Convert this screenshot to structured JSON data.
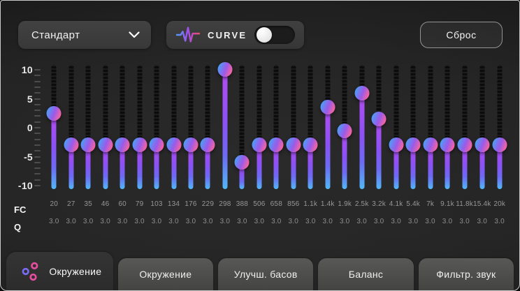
{
  "header": {
    "preset": {
      "value": "Стандарт"
    },
    "curve": {
      "label": "CURVE",
      "enabled": false
    },
    "reset_label": "Сброс"
  },
  "equalizer": {
    "db_scale": [
      10,
      5,
      0,
      -5,
      -10
    ],
    "db_min": -10,
    "db_max": 10,
    "fc_row_label": "FC",
    "q_row_label": "Q",
    "bands": [
      {
        "freq": "20",
        "gain": 2.5,
        "q": "3.0"
      },
      {
        "freq": "27",
        "gain": -3,
        "q": "3.0"
      },
      {
        "freq": "35",
        "gain": -3,
        "q": "3.0"
      },
      {
        "freq": "46",
        "gain": -3,
        "q": "3.0"
      },
      {
        "freq": "60",
        "gain": -3,
        "q": "3.0"
      },
      {
        "freq": "79",
        "gain": -3,
        "q": "3.0"
      },
      {
        "freq": "103",
        "gain": -3,
        "q": "3.0"
      },
      {
        "freq": "134",
        "gain": -3,
        "q": "3.0"
      },
      {
        "freq": "176",
        "gain": -3,
        "q": "3.0"
      },
      {
        "freq": "229",
        "gain": -3,
        "q": "3.0"
      },
      {
        "freq": "298",
        "gain": 10.5,
        "q": "3.0"
      },
      {
        "freq": "388",
        "gain": -6,
        "q": "3.0"
      },
      {
        "freq": "506",
        "gain": -3,
        "q": "3.0"
      },
      {
        "freq": "658",
        "gain": -3,
        "q": "3.0"
      },
      {
        "freq": "856",
        "gain": -3,
        "q": "3.0"
      },
      {
        "freq": "1.1k",
        "gain": -3,
        "q": "3.0"
      },
      {
        "freq": "1.4k",
        "gain": 3.5,
        "q": "3.0"
      },
      {
        "freq": "1.9k",
        "gain": -0.5,
        "q": "3.0"
      },
      {
        "freq": "2.5k",
        "gain": 6,
        "q": "3.0"
      },
      {
        "freq": "3.2k",
        "gain": 1.5,
        "q": "3.0"
      },
      {
        "freq": "4.1k",
        "gain": -3,
        "q": "3.0"
      },
      {
        "freq": "5.4k",
        "gain": -3,
        "q": "3.0"
      },
      {
        "freq": "7k",
        "gain": -3,
        "q": "3.0"
      },
      {
        "freq": "9.1k",
        "gain": -3,
        "q": "3.0"
      },
      {
        "freq": "11.8k",
        "gain": -3,
        "q": "3.0"
      },
      {
        "freq": "15.4k",
        "gain": -3,
        "q": "3.0"
      },
      {
        "freq": "20k",
        "gain": -3,
        "q": "3.0"
      }
    ]
  },
  "tabs": [
    {
      "label": "Окружение",
      "active": true,
      "icon": "equalizer-sliders-icon"
    },
    {
      "label": "Окружение",
      "active": false
    },
    {
      "label": "Улучш. басов",
      "active": false
    },
    {
      "label": "Баланс",
      "active": false
    },
    {
      "label": "Фильтр. звук",
      "active": false
    }
  ],
  "colors": {
    "knob_blue": "#4d9df6",
    "knob_pink": "#f7659f",
    "stem_purple": "#b44df2",
    "stem_blue": "#52b8f6",
    "curve_icon_red": "#ef4b6a"
  }
}
